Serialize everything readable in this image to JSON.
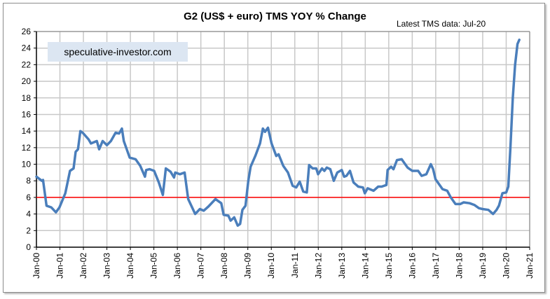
{
  "chart_data": {
    "type": "line",
    "title": "G2 (US$ + euro) TMS YOY  % Change",
    "annotation": "Latest TMS  data: Jul-20",
    "watermark": "speculative-investor.com",
    "xlabel": "",
    "ylabel": "",
    "ylim": [
      0,
      26
    ],
    "xlim": [
      2000,
      2021
    ],
    "grid": true,
    "y_ticks": [
      "0",
      "2",
      "4",
      "6",
      "8",
      "10",
      "12",
      "14",
      "16",
      "18",
      "20",
      "22",
      "24",
      "26"
    ],
    "x_ticks": [
      "Jan-00",
      "Jan-01",
      "Jan-02",
      "Jan-03",
      "Jan-04",
      "Jan-05",
      "Jan-06",
      "Jan-07",
      "Jan-08",
      "Jan-09",
      "Jan-10",
      "Jan-11",
      "Jan-12",
      "Jan-13",
      "Jan-14",
      "Jan-15",
      "Jan-16",
      "Jan-17",
      "Jan-18",
      "Jan-19",
      "Jan-20",
      "Jan-21"
    ],
    "reference_line": {
      "value": 6,
      "color": "#ff0000"
    },
    "series": [
      {
        "name": "G2 TMS YOY % change",
        "color": "#4a7ebb",
        "x": [
          2000.0,
          2000.23,
          2000.28,
          2000.43,
          2000.63,
          2000.83,
          2000.98,
          2001.23,
          2001.43,
          2001.58,
          2001.67,
          2001.77,
          2001.87,
          2001.97,
          2002.22,
          2002.32,
          2002.57,
          2002.67,
          2002.82,
          2003.0,
          2003.17,
          2003.37,
          2003.52,
          2003.64,
          2003.72,
          2003.97,
          2004.22,
          2004.42,
          2004.62,
          2004.67,
          2004.82,
          2005.01,
          2005.21,
          2005.38,
          2005.51,
          2005.71,
          2005.86,
          2005.91,
          2006.11,
          2006.31,
          2006.46,
          2006.76,
          2006.96,
          2007.12,
          2007.32,
          2007.62,
          2007.87,
          2007.97,
          2008.17,
          2008.27,
          2008.42,
          2008.57,
          2008.67,
          2008.77,
          2008.9,
          2009.02,
          2009.12,
          2009.32,
          2009.52,
          2009.64,
          2009.73,
          2009.86,
          2010.01,
          2010.21,
          2010.31,
          2010.51,
          2010.71,
          2010.91,
          2011.06,
          2011.21,
          2011.36,
          2011.51,
          2011.61,
          2011.76,
          2011.91,
          2011.99,
          2012.16,
          2012.26,
          2012.36,
          2012.51,
          2012.66,
          2012.81,
          2013.0,
          2013.1,
          2013.2,
          2013.35,
          2013.5,
          2013.7,
          2013.9,
          2013.98,
          2014.1,
          2014.35,
          2014.55,
          2014.7,
          2014.9,
          2014.95,
          2015.1,
          2015.2,
          2015.35,
          2015.55,
          2015.7,
          2015.8,
          2016.0,
          2016.25,
          2016.4,
          2016.6,
          2016.79,
          2016.89,
          2016.99,
          2017.14,
          2017.29,
          2017.49,
          2017.64,
          2017.84,
          2018.04,
          2018.19,
          2018.44,
          2018.64,
          2018.84,
          2018.99,
          2019.24,
          2019.44,
          2019.59,
          2019.69,
          2019.84,
          2020.0,
          2020.09,
          2020.18,
          2020.28,
          2020.38,
          2020.48,
          2020.56
        ],
        "y": [
          8.5,
          8.0,
          8.1,
          5.0,
          4.8,
          4.2,
          4.8,
          6.5,
          9.2,
          9.5,
          11.5,
          11.8,
          14.0,
          13.8,
          13.0,
          12.5,
          12.8,
          11.8,
          12.8,
          12.3,
          12.8,
          13.8,
          13.7,
          14.3,
          12.8,
          10.8,
          10.6,
          9.8,
          8.5,
          9.3,
          9.4,
          9.2,
          7.8,
          6.3,
          9.5,
          9.1,
          8.4,
          9.0,
          8.8,
          9.0,
          5.8,
          4.0,
          4.6,
          4.4,
          4.9,
          5.8,
          5.3,
          3.9,
          3.8,
          3.2,
          3.6,
          2.6,
          2.8,
          4.5,
          5.0,
          8.0,
          9.7,
          11.0,
          12.5,
          14.3,
          13.9,
          14.4,
          12.5,
          11.0,
          11.2,
          9.8,
          9.0,
          7.4,
          7.2,
          7.9,
          6.7,
          6.6,
          9.9,
          9.5,
          9.5,
          8.8,
          9.5,
          9.2,
          9.6,
          9.4,
          8.0,
          9.0,
          9.3,
          8.5,
          8.6,
          9.2,
          7.8,
          7.3,
          7.2,
          6.5,
          7.1,
          6.8,
          7.3,
          7.3,
          7.5,
          9.3,
          9.7,
          9.4,
          10.5,
          10.6,
          10.0,
          9.6,
          9.2,
          9.2,
          8.6,
          8.8,
          10.0,
          9.4,
          8.2,
          7.6,
          7.0,
          6.8,
          6.0,
          5.2,
          5.2,
          5.4,
          5.3,
          5.1,
          4.7,
          4.6,
          4.5,
          4.0,
          4.5,
          5.0,
          6.5,
          6.6,
          7.3,
          12.0,
          18.0,
          22.0,
          24.5,
          25.0
        ]
      }
    ]
  }
}
